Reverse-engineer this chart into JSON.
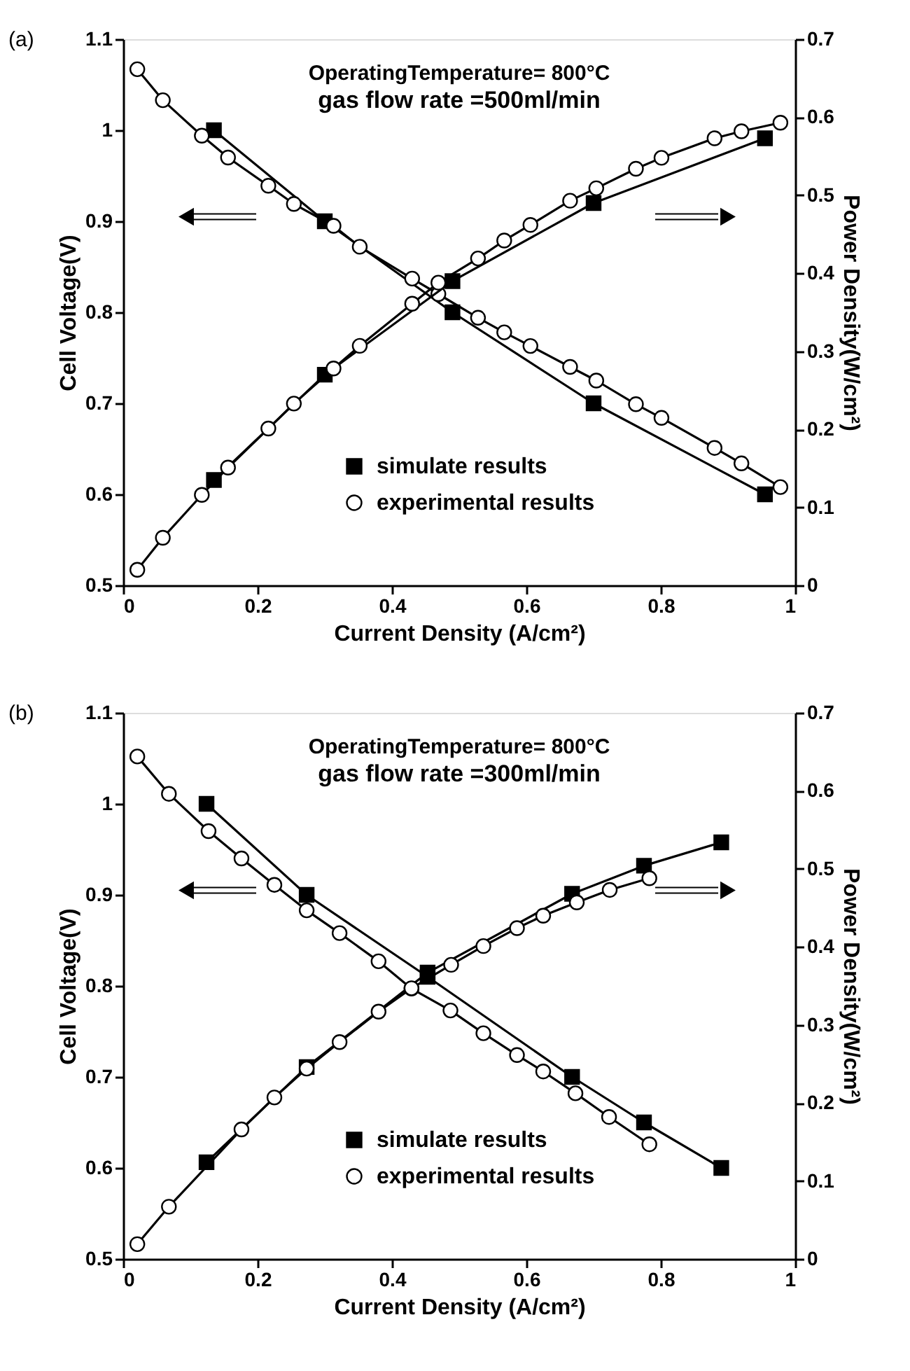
{
  "chart_data": [
    {
      "type": "line",
      "annotations": [
        "(a)",
        "OperatingTemperature= 800°C",
        "gas flow rate =500ml/min"
      ],
      "xlabel": "Current Density (A/cm²)",
      "ylabel": "Cell Voltage(V)",
      "y2label": "Power Density(W/cm²)",
      "xlim": [
        0,
        1
      ],
      "xticks": [
        0,
        0.2,
        0.4,
        0.6,
        0.8,
        1
      ],
      "ylim": [
        0.5,
        1.1
      ],
      "yticks": [
        0.5,
        0.6,
        0.7,
        0.8,
        0.9,
        1,
        1.1
      ],
      "y2lim": [
        0,
        0.7
      ],
      "y2ticks": [
        0,
        0.1,
        0.2,
        0.3,
        0.4,
        0.5,
        0.6,
        0.7
      ],
      "grid": false,
      "legend": "bottom",
      "line_style": "solid",
      "series": [
        {
          "name": "simulate results",
          "color": "#000000",
          "marker": "square",
          "x": [
            0.135,
            0.3,
            0.49,
            0.7,
            0.955
          ],
          "values": [
            1.0,
            0.9,
            0.8,
            0.7,
            0.6
          ]
        },
        {
          "name": "experimental results",
          "color": "#000000",
          "marker": "circle",
          "x": [
            0.021,
            0.059,
            0.117,
            0.156,
            0.216,
            0.254,
            0.313,
            0.352,
            0.43,
            0.469,
            0.528,
            0.567,
            0.606,
            0.665,
            0.704,
            0.763,
            0.801,
            0.88,
            0.92,
            0.978
          ],
          "values": [
            1.067,
            1.033,
            0.994,
            0.97,
            0.939,
            0.919,
            0.895,
            0.872,
            0.837,
            0.82,
            0.794,
            0.778,
            0.763,
            0.74,
            0.725,
            0.699,
            0.684,
            0.651,
            0.634,
            0.608
          ]
        },
        {
          "color": "#000000",
          "marker": "square",
          "axis": "y2",
          "x": [
            0.135,
            0.3,
            0.49,
            0.7,
            0.955
          ],
          "values": [
            0.135,
            0.27,
            0.39,
            0.49,
            0.573
          ]
        },
        {
          "color": "#000000",
          "marker": "circle",
          "axis": "y2",
          "x": [
            0.021,
            0.059,
            0.117,
            0.156,
            0.216,
            0.254,
            0.313,
            0.352,
            0.43,
            0.469,
            0.528,
            0.567,
            0.606,
            0.665,
            0.704,
            0.763,
            0.801,
            0.88,
            0.92,
            0.978
          ],
          "values": [
            0.02,
            0.061,
            0.116,
            0.151,
            0.201,
            0.233,
            0.278,
            0.307,
            0.361,
            0.388,
            0.419,
            0.442,
            0.462,
            0.493,
            0.509,
            0.534,
            0.548,
            0.573,
            0.582,
            0.593
          ]
        }
      ]
    },
    {
      "type": "line",
      "annotations": [
        "(b)",
        "OperatingTemperature= 800°C",
        "gas flow rate =300ml/min"
      ],
      "xlabel": "Current Density (A/cm²)",
      "ylabel": "Cell Voltage(V)",
      "y2label": "Power Density(W/cm²)",
      "xlim": [
        0,
        1
      ],
      "xticks": [
        0,
        0.2,
        0.4,
        0.6,
        0.8,
        1
      ],
      "ylim": [
        0.5,
        1.1
      ],
      "yticks": [
        0.5,
        0.6,
        0.7,
        0.8,
        0.9,
        1,
        1.1
      ],
      "y2lim": [
        0,
        0.7
      ],
      "y2ticks": [
        0,
        0.1,
        0.2,
        0.3,
        0.4,
        0.5,
        0.6,
        0.7
      ],
      "grid": false,
      "legend": "bottom",
      "line_style": "solid",
      "series": [
        {
          "name": "simulate results",
          "color": "#000000",
          "marker": "square",
          "x": [
            0.124,
            0.273,
            0.453,
            0.668,
            0.775,
            0.89
          ],
          "values": [
            1.0,
            0.9,
            0.81,
            0.7,
            0.65,
            0.6
          ]
        },
        {
          "name": "experimental results",
          "color": "#000000",
          "marker": "circle",
          "x": [
            0.021,
            0.068,
            0.127,
            0.176,
            0.225,
            0.273,
            0.322,
            0.38,
            0.429,
            0.487,
            0.536,
            0.586,
            0.625,
            0.673,
            0.723,
            0.783
          ],
          "values": [
            1.052,
            1.011,
            0.97,
            0.94,
            0.911,
            0.883,
            0.858,
            0.827,
            0.797,
            0.773,
            0.748,
            0.724,
            0.706,
            0.682,
            0.656,
            0.626
          ]
        },
        {
          "color": "#000000",
          "marker": "square",
          "axis": "y2",
          "x": [
            0.124,
            0.273,
            0.453,
            0.668,
            0.775,
            0.89
          ],
          "values": [
            0.124,
            0.246,
            0.367,
            0.468,
            0.504,
            0.534
          ]
        },
        {
          "color": "#000000",
          "marker": "circle",
          "axis": "y2",
          "x": [
            0.021,
            0.068,
            0.176,
            0.225,
            0.273,
            0.322,
            0.38,
            0.429,
            0.488,
            0.536,
            0.586,
            0.625,
            0.675,
            0.724,
            0.783
          ],
          "values": [
            0.019,
            0.067,
            0.166,
            0.207,
            0.244,
            0.278,
            0.317,
            0.347,
            0.377,
            0.401,
            0.424,
            0.44,
            0.457,
            0.473,
            0.488
          ]
        }
      ]
    }
  ]
}
